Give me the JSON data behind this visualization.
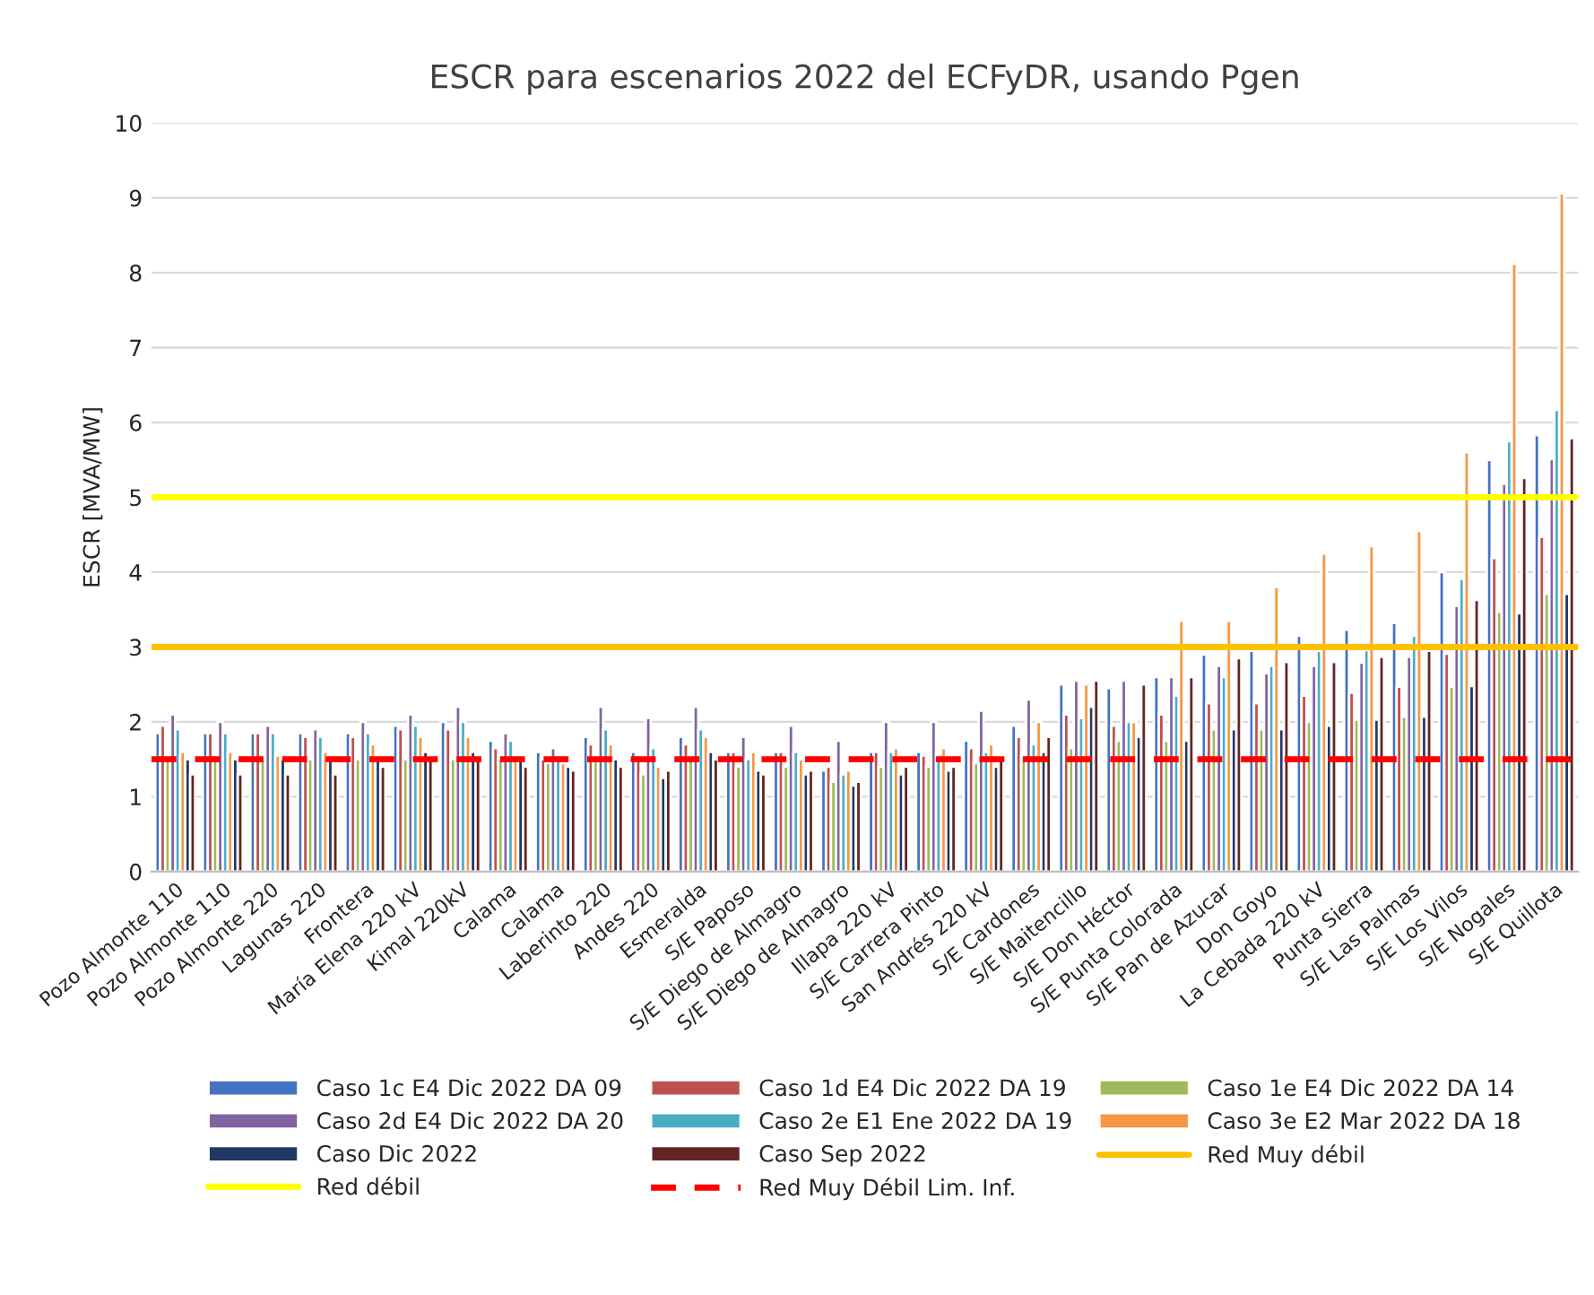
{
  "chart_data": {
    "type": "bar",
    "title": "ESCR para escenarios 2022 del ECFyDR, usando Pgen",
    "ylabel": "ESCR [MVA/MW]",
    "categories": [
      "Pozo Almonte 110",
      "Pozo Almonte 110",
      "Pozo Almonte 220",
      "Lagunas 220",
      "Frontera",
      "María Elena 220 kV",
      "Kimal 220kV",
      "Calama",
      "Calama",
      "Laberinto 220",
      "Andes 220",
      "Esmeralda",
      "S/E Paposo",
      "S/E Diego de Almagro",
      "S/E Diego de Almagro",
      "Illapa 220 kV",
      "S/E Carrera Pinto",
      "San Andrés 220 kV",
      "S/E Cardones",
      "S/E Maitencillo",
      "S/E Don Héctor",
      "S/E Punta Colorada",
      "S/E Pan de Azucar",
      "Don Goyo",
      "La Cebada 220 kV",
      "Punta Sierra",
      "S/E Las Palmas",
      "S/E Los Vilos",
      "S/E Nogales",
      "S/E Quillota"
    ],
    "series": [
      {
        "name": "Caso 1c E4 Dic 2022 DA 09",
        "color": "#4472c4",
        "values": [
          1.85,
          1.85,
          1.85,
          1.85,
          1.85,
          1.95,
          2.0,
          1.75,
          1.6,
          1.8,
          1.6,
          1.8,
          1.6,
          1.6,
          1.35,
          1.6,
          1.6,
          1.75,
          1.95,
          2.5,
          2.45,
          2.6,
          2.9,
          2.95,
          3.15,
          3.23,
          3.32,
          4.0,
          5.5,
          5.83
        ]
      },
      {
        "name": "Caso 1d E4 Dic 2022 DA 19",
        "color": "#c0504d",
        "values": [
          1.95,
          1.85,
          1.85,
          1.8,
          1.8,
          1.9,
          1.9,
          1.65,
          1.5,
          1.7,
          1.55,
          1.7,
          1.6,
          1.6,
          1.4,
          1.6,
          1.55,
          1.65,
          1.8,
          2.1,
          1.95,
          2.1,
          2.25,
          2.25,
          2.35,
          2.39,
          2.47,
          2.91,
          4.19,
          4.47
        ]
      },
      {
        "name": "Caso 1e E4 Dic 2022 DA 14",
        "color": "#9bbb59",
        "values": [
          1.5,
          1.5,
          1.5,
          1.5,
          1.5,
          1.5,
          1.5,
          1.5,
          1.45,
          1.5,
          1.3,
          1.5,
          1.4,
          1.4,
          1.2,
          1.4,
          1.4,
          1.45,
          1.55,
          1.65,
          1.75,
          1.75,
          1.9,
          1.9,
          2.0,
          2.03,
          2.07,
          2.47,
          3.47,
          3.71
        ]
      },
      {
        "name": "Caso 2d E4 Dic 2022 DA 20",
        "color": "#8064a2",
        "values": [
          2.1,
          2.0,
          1.95,
          1.9,
          2.0,
          2.1,
          2.2,
          1.85,
          1.65,
          2.2,
          2.05,
          2.2,
          1.8,
          1.95,
          1.75,
          2.0,
          2.0,
          2.15,
          2.3,
          2.55,
          2.55,
          2.6,
          2.75,
          2.65,
          2.75,
          2.79,
          2.87,
          3.55,
          5.18,
          5.51
        ]
      },
      {
        "name": "Caso 2e E1 Ene 2022 DA 19",
        "color": "#4bacc6",
        "values": [
          1.9,
          1.85,
          1.85,
          1.8,
          1.85,
          1.95,
          2.0,
          1.75,
          1.5,
          1.9,
          1.65,
          1.9,
          1.5,
          1.6,
          1.3,
          1.6,
          1.55,
          1.6,
          1.7,
          2.05,
          2.0,
          2.35,
          2.6,
          2.75,
          2.95,
          2.96,
          3.15,
          3.91,
          5.75,
          6.17
        ]
      },
      {
        "name": "Caso 3e E2 Mar 2022 DA 18",
        "color": "#f79646",
        "values": [
          1.6,
          1.6,
          1.55,
          1.6,
          1.7,
          1.8,
          1.8,
          1.5,
          1.45,
          1.7,
          1.4,
          1.8,
          1.6,
          1.5,
          1.35,
          1.65,
          1.65,
          1.7,
          2.0,
          2.5,
          2.0,
          3.35,
          3.35,
          3.8,
          4.25,
          4.35,
          4.55,
          5.6,
          8.12,
          9.06
        ]
      },
      {
        "name": "Caso Dic 2022",
        "color": "#1f3864",
        "values": [
          1.5,
          1.5,
          1.5,
          1.5,
          1.5,
          1.6,
          1.6,
          1.5,
          1.4,
          1.5,
          1.25,
          1.6,
          1.35,
          1.3,
          1.15,
          1.3,
          1.35,
          1.4,
          1.6,
          2.2,
          1.8,
          1.75,
          1.9,
          1.9,
          1.95,
          2.03,
          2.07,
          2.48,
          3.45,
          3.71
        ]
      },
      {
        "name": "Caso Sep 2022",
        "color": "#632523",
        "values": [
          1.3,
          1.3,
          1.3,
          1.3,
          1.4,
          1.5,
          1.55,
          1.4,
          1.35,
          1.4,
          1.35,
          1.5,
          1.3,
          1.35,
          1.2,
          1.4,
          1.4,
          1.5,
          1.8,
          2.55,
          2.5,
          2.6,
          2.85,
          2.8,
          2.8,
          2.87,
          2.95,
          3.63,
          5.26,
          5.79
        ]
      }
    ],
    "ref_lines": [
      {
        "axis": "y",
        "value": 3,
        "label": "Red Muy débil",
        "color": "#ffc000",
        "line_style": "solid"
      },
      {
        "axis": "y",
        "value": 5,
        "label": "Red débil",
        "color": "#ffff00",
        "line_style": "solid"
      },
      {
        "axis": "y",
        "value": 1.5,
        "label": "Red Muy Débil Lim. Inf.",
        "color": "#ff0000",
        "line_style": "dashed"
      }
    ],
    "ylim": [
      0,
      10
    ],
    "yticks": [
      0,
      1,
      2,
      3,
      4,
      5,
      6,
      7,
      8,
      9,
      10
    ],
    "grid": "y",
    "legend": "bottom"
  }
}
